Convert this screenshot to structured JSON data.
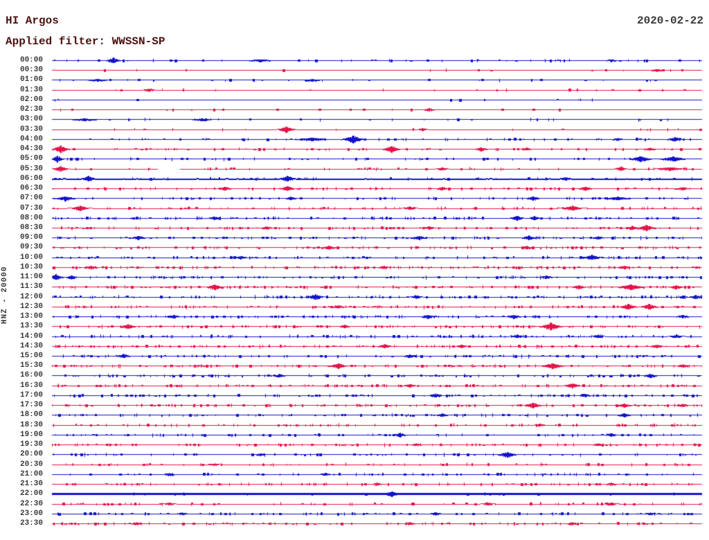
{
  "header": {
    "station": "HI Argos",
    "filter": "Applied filter: WWSSN-SP",
    "date": "2020-02-22"
  },
  "axis": {
    "channel_label": "HNZ - 20000"
  },
  "colors": {
    "trace_blue": "#1212cc",
    "trace_red": "#e6124a",
    "header_text": "#4d1111",
    "label_text": "#3a3a3a",
    "background": "#ffffff"
  },
  "chart_data": {
    "type": "helicorder",
    "title": "HI Argos",
    "subtitle": "Applied filter: WWSSN-SP",
    "date": "2020-02-22",
    "channel": "HNZ",
    "scale": 20000,
    "minutes_per_row": 30,
    "row_count": 48,
    "legend_position": "none",
    "grid": false,
    "note": "48 alternating blue/red 30-minute trace rows; events given as fractional x along row with amplitude in px and width in px; gaps are fractional x ranges with no data",
    "rows": [
      {
        "label": "00:00",
        "color": "blue",
        "noise": 0.18,
        "events": [
          {
            "x": 0.094,
            "amp": 3.2,
            "w": 6
          },
          {
            "x": 0.32,
            "amp": 1.2,
            "w": 12
          },
          {
            "x": 0.86,
            "amp": 1.2,
            "w": 5
          }
        ]
      },
      {
        "label": "00:30",
        "color": "red",
        "noise": 0.08,
        "events": [
          {
            "x": 0.93,
            "amp": 1.2,
            "w": 6
          }
        ]
      },
      {
        "label": "01:00",
        "color": "blue",
        "noise": 0.14,
        "events": [
          {
            "x": 0.07,
            "amp": 1.2,
            "w": 10
          },
          {
            "x": 0.4,
            "amp": 1.3,
            "w": 8
          }
        ]
      },
      {
        "label": "01:30",
        "color": "red",
        "noise": 0.1,
        "events": [
          {
            "x": 0.149,
            "amp": 1.8,
            "w": 5
          }
        ]
      },
      {
        "label": "02:00",
        "color": "blue",
        "noise": 0.06,
        "events": []
      },
      {
        "label": "02:30",
        "color": "red",
        "noise": 0.1,
        "events": [
          {
            "x": 0.58,
            "amp": 1.6,
            "w": 5
          }
        ]
      },
      {
        "label": "03:00",
        "color": "blue",
        "noise": 0.13,
        "events": [
          {
            "x": 0.05,
            "amp": 1.1,
            "w": 14
          },
          {
            "x": 0.23,
            "amp": 1.1,
            "w": 10
          }
        ]
      },
      {
        "label": "03:30",
        "color": "red",
        "noise": 0.15,
        "events": [
          {
            "x": 0.36,
            "amp": 3.4,
            "w": 7
          },
          {
            "x": 0.57,
            "amp": 1.6,
            "w": 4
          }
        ]
      },
      {
        "label": "04:00",
        "color": "blue",
        "noise": 0.3,
        "events": [
          {
            "x": 0.4,
            "amp": 1.8,
            "w": 14
          },
          {
            "x": 0.463,
            "amp": 4.2,
            "w": 9
          },
          {
            "x": 0.87,
            "amp": 1.5,
            "w": 5
          },
          {
            "x": 0.958,
            "amp": 2.2,
            "w": 7
          }
        ]
      },
      {
        "label": "04:30",
        "color": "red",
        "noise": 0.3,
        "events": [
          {
            "x": 0.013,
            "amp": 4.2,
            "w": 7
          },
          {
            "x": 0.522,
            "amp": 3.8,
            "w": 7
          },
          {
            "x": 0.66,
            "amp": 2.0,
            "w": 6
          },
          {
            "x": 0.73,
            "amp": 1.5,
            "w": 4
          },
          {
            "x": 0.92,
            "amp": 1.5,
            "w": 5
          }
        ]
      },
      {
        "label": "05:00",
        "color": "blue",
        "noise": 0.25,
        "events": [
          {
            "x": 0.008,
            "amp": 3.8,
            "w": 5
          },
          {
            "x": 0.905,
            "amp": 3.2,
            "w": 9
          },
          {
            "x": 0.955,
            "amp": 2.8,
            "w": 11
          }
        ]
      },
      {
        "label": "05:30",
        "color": "red",
        "noise": 0.3,
        "gaps": [
          [
            0.162,
            0.196
          ]
        ],
        "events": [
          {
            "x": 0.013,
            "amp": 3.2,
            "w": 6
          },
          {
            "x": 0.6,
            "amp": 1.5,
            "w": 5
          },
          {
            "x": 0.875,
            "amp": 2.8,
            "w": 4
          },
          {
            "x": 0.95,
            "amp": 1.8,
            "w": 12
          }
        ]
      },
      {
        "label": "06:00",
        "color": "blue",
        "noise": 0.4,
        "base": 0.8,
        "events": [
          {
            "x": 0.056,
            "amp": 3.2,
            "w": 6
          },
          {
            "x": 0.362,
            "amp": 3.2,
            "w": 7
          },
          {
            "x": 0.79,
            "amp": 1.8,
            "w": 6
          }
        ]
      },
      {
        "label": "06:30",
        "color": "red",
        "noise": 0.45,
        "events": [
          {
            "x": 0.266,
            "amp": 2.2,
            "w": 5
          },
          {
            "x": 0.362,
            "amp": 2.8,
            "w": 6
          },
          {
            "x": 0.6,
            "amp": 1.8,
            "w": 5
          },
          {
            "x": 0.82,
            "amp": 2.2,
            "w": 6
          },
          {
            "x": 0.97,
            "amp": 1.8,
            "w": 5
          }
        ]
      },
      {
        "label": "07:00",
        "color": "blue",
        "noise": 0.5,
        "events": [
          {
            "x": 0.02,
            "amp": 2.4,
            "w": 9
          },
          {
            "x": 0.367,
            "amp": 1.8,
            "w": 5
          },
          {
            "x": 0.74,
            "amp": 2.2,
            "w": 6
          },
          {
            "x": 0.87,
            "amp": 1.8,
            "w": 12
          }
        ]
      },
      {
        "label": "07:30",
        "color": "red",
        "noise": 0.5,
        "events": [
          {
            "x": 0.043,
            "amp": 3.2,
            "w": 7
          },
          {
            "x": 0.55,
            "amp": 1.8,
            "w": 5
          },
          {
            "x": 0.8,
            "amp": 2.8,
            "w": 8
          }
        ]
      },
      {
        "label": "08:00",
        "color": "blue",
        "noise": 0.55,
        "events": [
          {
            "x": 0.25,
            "amp": 1.8,
            "w": 6
          },
          {
            "x": 0.715,
            "amp": 2.8,
            "w": 6
          },
          {
            "x": 0.742,
            "amp": 2.2,
            "w": 5
          }
        ]
      },
      {
        "label": "08:30",
        "color": "red",
        "noise": 0.6,
        "events": [
          {
            "x": 0.33,
            "amp": 1.8,
            "w": 5
          },
          {
            "x": 0.58,
            "amp": 1.8,
            "w": 5
          },
          {
            "x": 0.892,
            "amp": 2.2,
            "w": 5
          },
          {
            "x": 0.914,
            "amp": 3.6,
            "w": 7
          }
        ]
      },
      {
        "label": "09:00",
        "color": "blue",
        "noise": 0.55,
        "events": [
          {
            "x": 0.133,
            "amp": 2.2,
            "w": 6
          },
          {
            "x": 0.565,
            "amp": 2.2,
            "w": 6
          },
          {
            "x": 0.733,
            "amp": 2.4,
            "w": 6
          },
          {
            "x": 0.84,
            "amp": 1.8,
            "w": 5
          }
        ]
      },
      {
        "label": "09:30",
        "color": "red",
        "noise": 0.6,
        "events": [
          {
            "x": 0.426,
            "amp": 2.2,
            "w": 6
          },
          {
            "x": 0.73,
            "amp": 1.8,
            "w": 5
          }
        ]
      },
      {
        "label": "10:00",
        "color": "blue",
        "noise": 0.6,
        "events": [
          {
            "x": 0.29,
            "amp": 1.8,
            "w": 5
          },
          {
            "x": 0.83,
            "amp": 2.8,
            "w": 8
          }
        ]
      },
      {
        "label": "10:30",
        "color": "red",
        "noise": 0.7,
        "events": [
          {
            "x": 0.06,
            "amp": 1.8,
            "w": 6
          },
          {
            "x": 0.51,
            "amp": 1.8,
            "w": 5
          },
          {
            "x": 0.88,
            "amp": 1.8,
            "w": 6
          }
        ]
      },
      {
        "label": "11:00",
        "color": "blue",
        "noise": 0.55,
        "events": [
          {
            "x": 0.006,
            "amp": 3.2,
            "w": 6
          },
          {
            "x": 0.03,
            "amp": 2.2,
            "w": 5
          },
          {
            "x": 0.76,
            "amp": 1.8,
            "w": 6
          }
        ]
      },
      {
        "label": "11:30",
        "color": "red",
        "noise": 0.75,
        "events": [
          {
            "x": 0.25,
            "amp": 3.2,
            "w": 7
          },
          {
            "x": 0.81,
            "amp": 2.2,
            "w": 6
          },
          {
            "x": 0.89,
            "amp": 3.2,
            "w": 11
          },
          {
            "x": 0.96,
            "amp": 2.2,
            "w": 6
          }
        ]
      },
      {
        "label": "12:00",
        "color": "blue",
        "noise": 0.65,
        "events": [
          {
            "x": 0.405,
            "amp": 3.2,
            "w": 7
          },
          {
            "x": 0.56,
            "amp": 1.8,
            "w": 5
          },
          {
            "x": 0.99,
            "amp": 2.2,
            "w": 5
          }
        ]
      },
      {
        "label": "12:30",
        "color": "red",
        "noise": 0.6,
        "events": [
          {
            "x": 0.44,
            "amp": 1.8,
            "w": 5
          },
          {
            "x": 0.886,
            "amp": 3.2,
            "w": 7
          },
          {
            "x": 0.918,
            "amp": 3.2,
            "w": 7
          }
        ]
      },
      {
        "label": "13:00",
        "color": "blue",
        "noise": 0.6,
        "events": [
          {
            "x": 0.187,
            "amp": 1.8,
            "w": 5
          },
          {
            "x": 0.578,
            "amp": 2.2,
            "w": 6
          },
          {
            "x": 0.71,
            "amp": 2.2,
            "w": 6
          },
          {
            "x": 0.97,
            "amp": 1.8,
            "w": 6
          }
        ]
      },
      {
        "label": "13:30",
        "color": "red",
        "noise": 0.6,
        "events": [
          {
            "x": 0.117,
            "amp": 2.8,
            "w": 6
          },
          {
            "x": 0.45,
            "amp": 1.8,
            "w": 5
          },
          {
            "x": 0.767,
            "amp": 4.2,
            "w": 9
          }
        ]
      },
      {
        "label": "14:00",
        "color": "blue",
        "noise": 0.55,
        "events": [
          {
            "x": 0.715,
            "amp": 1.8,
            "w": 5
          },
          {
            "x": 0.84,
            "amp": 1.8,
            "w": 5
          },
          {
            "x": 0.96,
            "amp": 1.8,
            "w": 6
          }
        ]
      },
      {
        "label": "14:30",
        "color": "red",
        "noise": 0.6,
        "events": [
          {
            "x": 0.512,
            "amp": 2.2,
            "w": 6
          },
          {
            "x": 0.63,
            "amp": 1.8,
            "w": 5
          },
          {
            "x": 0.93,
            "amp": 1.8,
            "w": 6
          }
        ]
      },
      {
        "label": "15:00",
        "color": "blue",
        "noise": 0.55,
        "events": [
          {
            "x": 0.11,
            "amp": 2.2,
            "w": 6
          },
          {
            "x": 0.55,
            "amp": 1.8,
            "w": 5
          }
        ]
      },
      {
        "label": "15:30",
        "color": "red",
        "noise": 0.65,
        "events": [
          {
            "x": 0.44,
            "amp": 3.2,
            "w": 7
          },
          {
            "x": 0.77,
            "amp": 3.2,
            "w": 9
          },
          {
            "x": 0.97,
            "amp": 1.8,
            "w": 5
          }
        ]
      },
      {
        "label": "16:00",
        "color": "blue",
        "noise": 0.6,
        "events": [
          {
            "x": 0.35,
            "amp": 1.8,
            "w": 5
          },
          {
            "x": 0.92,
            "amp": 2.2,
            "w": 6
          }
        ]
      },
      {
        "label": "16:30",
        "color": "red",
        "noise": 0.65,
        "events": [
          {
            "x": 0.55,
            "amp": 1.8,
            "w": 5
          },
          {
            "x": 0.8,
            "amp": 2.8,
            "w": 7
          }
        ]
      },
      {
        "label": "17:00",
        "color": "blue",
        "noise": 0.55,
        "events": [
          {
            "x": 0.59,
            "amp": 2.2,
            "w": 6
          },
          {
            "x": 0.82,
            "amp": 1.8,
            "w": 5
          }
        ]
      },
      {
        "label": "17:30",
        "color": "red",
        "noise": 0.6,
        "events": [
          {
            "x": 0.74,
            "amp": 3.2,
            "w": 7
          },
          {
            "x": 0.88,
            "amp": 2.2,
            "w": 6
          },
          {
            "x": 0.97,
            "amp": 1.8,
            "w": 5
          }
        ]
      },
      {
        "label": "18:00",
        "color": "blue",
        "noise": 0.5,
        "events": [
          {
            "x": 0.6,
            "amp": 1.8,
            "w": 5
          },
          {
            "x": 0.88,
            "amp": 2.2,
            "w": 6
          }
        ]
      },
      {
        "label": "18:30",
        "color": "red",
        "noise": 0.45,
        "events": [
          {
            "x": 0.75,
            "amp": 1.5,
            "w": 5
          }
        ]
      },
      {
        "label": "19:00",
        "color": "blue",
        "noise": 0.45,
        "events": [
          {
            "x": 0.535,
            "amp": 2.4,
            "w": 5
          },
          {
            "x": 0.86,
            "amp": 1.8,
            "w": 5
          }
        ]
      },
      {
        "label": "19:30",
        "color": "red",
        "noise": 0.5,
        "events": [
          {
            "x": 0.56,
            "amp": 1.5,
            "w": 5
          },
          {
            "x": 0.84,
            "amp": 1.5,
            "w": 5
          }
        ]
      },
      {
        "label": "20:00",
        "color": "blue",
        "noise": 0.4,
        "events": [
          {
            "x": 0.32,
            "amp": 1.5,
            "w": 5
          },
          {
            "x": 0.7,
            "amp": 3.2,
            "w": 8
          }
        ]
      },
      {
        "label": "20:30",
        "color": "red",
        "noise": 0.3,
        "events": [
          {
            "x": 0.25,
            "amp": 1.1,
            "w": 5
          }
        ]
      },
      {
        "label": "21:00",
        "color": "blue",
        "noise": 0.4,
        "events": [
          {
            "x": 0.18,
            "amp": 1.5,
            "w": 5
          },
          {
            "x": 0.42,
            "amp": 1.5,
            "w": 5
          }
        ]
      },
      {
        "label": "21:30",
        "color": "red",
        "noise": 0.35,
        "events": [
          {
            "x": 0.5,
            "amp": 1.5,
            "w": 5
          },
          {
            "x": 0.86,
            "amp": 1.5,
            "w": 5
          }
        ]
      },
      {
        "label": "22:00",
        "color": "blue",
        "noise": 0.25,
        "base": 1.3,
        "events": [
          {
            "x": 0.522,
            "amp": 3.2,
            "w": 7
          }
        ]
      },
      {
        "label": "22:30",
        "color": "red",
        "noise": 0.45,
        "events": [
          {
            "x": 0.18,
            "amp": 1.5,
            "w": 5
          },
          {
            "x": 0.67,
            "amp": 1.8,
            "w": 5
          },
          {
            "x": 0.86,
            "amp": 1.5,
            "w": 5
          }
        ]
      },
      {
        "label": "23:00",
        "color": "blue",
        "noise": 0.45,
        "events": [
          {
            "x": 0.2,
            "amp": 1.5,
            "w": 5
          },
          {
            "x": 0.59,
            "amp": 1.8,
            "w": 5
          },
          {
            "x": 0.92,
            "amp": 1.5,
            "w": 5
          }
        ]
      },
      {
        "label": "23:30",
        "color": "red",
        "noise": 0.55,
        "events": [
          {
            "x": 0.13,
            "amp": 1.5,
            "w": 5
          },
          {
            "x": 0.55,
            "amp": 1.5,
            "w": 5
          },
          {
            "x": 0.8,
            "amp": 1.5,
            "w": 5
          }
        ]
      }
    ]
  }
}
